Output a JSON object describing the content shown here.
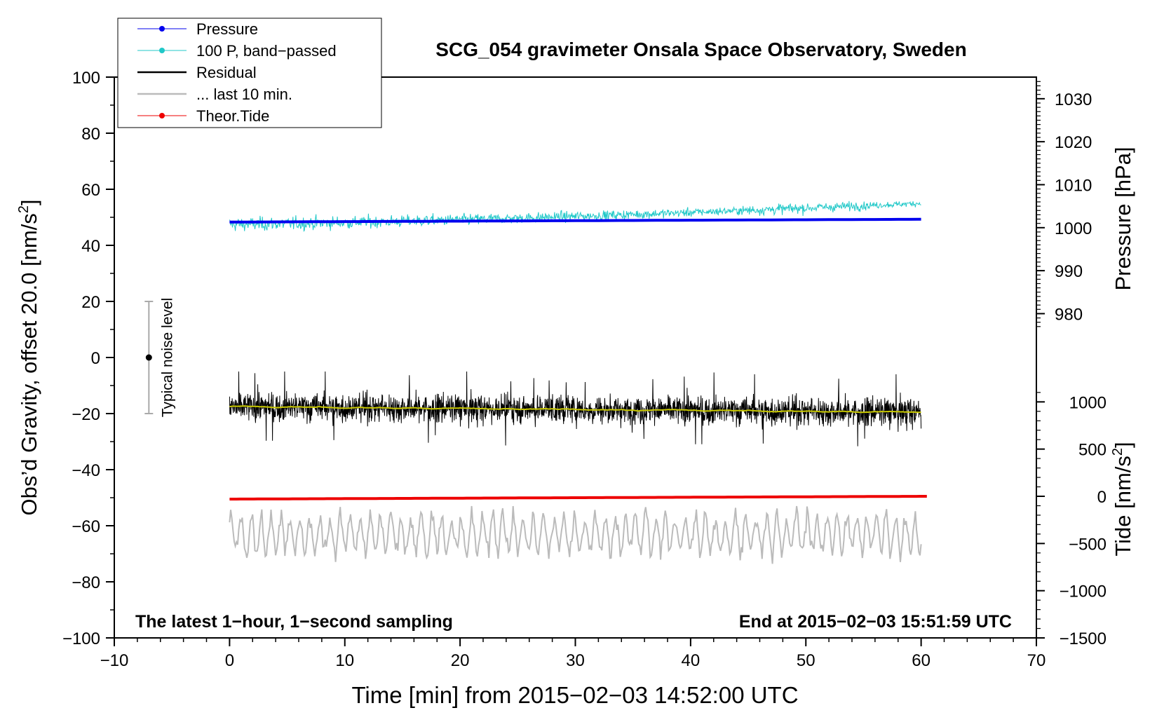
{
  "chart_data": {
    "type": "line",
    "title": "SCG_054 gravimeter Onsala Space Observatory, Sweden",
    "xlabel": "Time [min] from 2015−02−03 14:52:00 UTC",
    "ylabel_left": "Obs’d Gravity, offset 20.0 [nm/s",
    "ylabel_left_sup": "2",
    "ylabel_left_tail": "]",
    "ylabel_pressure": "Pressure [hPa]",
    "ylabel_tide": "Tide [nm/s",
    "ylabel_tide_sup": "2",
    "ylabel_tide_tail": "]",
    "xlim": [
      -10,
      70
    ],
    "ylim": [
      -100,
      100
    ],
    "x_ticks": [
      -10,
      0,
      10,
      20,
      30,
      40,
      50,
      60,
      70
    ],
    "x_tick_labels": [
      "−10",
      "0",
      "10",
      "20",
      "30",
      "40",
      "50",
      "60",
      "70"
    ],
    "y_ticks": [
      -100,
      -80,
      -60,
      -40,
      -20,
      0,
      20,
      40,
      60,
      80,
      100
    ],
    "y_tick_labels": [
      "−100",
      "−80",
      "−60",
      "−40",
      "−20",
      "0",
      "20",
      "40",
      "60",
      "80",
      "100"
    ],
    "pressure_axis": {
      "ticks": [
        980,
        990,
        1000,
        1010,
        1020,
        1030
      ],
      "tick_labels": [
        "980",
        "990",
        "1000",
        "1010",
        "1020",
        "1030"
      ],
      "map_left_value_at_1000": 46.3,
      "left_units_per_hpa": 1.533
    },
    "tide_axis": {
      "ticks": [
        -1500,
        -1000,
        -500,
        0,
        500,
        1000
      ],
      "tick_labels": [
        "−1500",
        "−1000",
        "−500",
        "0",
        "500",
        "1000"
      ],
      "map_left_value_at_0": -49.5,
      "left_units_per_nms2": 0.03367
    },
    "legend": {
      "position": "top-left",
      "entries": [
        {
          "label": "Pressure",
          "color": "#0000ee",
          "marker": true
        },
        {
          "label": "100 P, band−passed",
          "color": "#20c8c8",
          "marker": true
        },
        {
          "label": "Residual",
          "color": "#000000",
          "marker": false
        },
        {
          "label": "... last 10 min.",
          "color": "#bbbbbb",
          "marker": false
        },
        {
          "label": "Theor.Tide",
          "color": "#ee0000",
          "marker": true
        }
      ]
    },
    "series": [
      {
        "name": "Pressure",
        "color": "#0000ee",
        "x_range": [
          0,
          60
        ],
        "left_values_start_end": [
          48.3,
          49.3
        ],
        "hpa_start_end": [
          1001.3,
          1001.9
        ]
      },
      {
        "name": "100 P, band−passed",
        "color": "#20c8c8",
        "x_range": [
          0,
          60
        ],
        "left_values_start_end": [
          47.5,
          55.0
        ],
        "noise_amplitude_start_end": [
          2.5,
          1.0
        ]
      },
      {
        "name": "Residual",
        "color": "#000000",
        "x_range": [
          0,
          60
        ],
        "mean_start_end": [
          -17.5,
          -19.5
        ],
        "typical_range": [
          -27,
          -8
        ],
        "extremes": [
          -33,
          -5
        ]
      },
      {
        "name": "Residual smoothed",
        "color": "#c8c800",
        "x_range": [
          0,
          60
        ],
        "mean_start_end": [
          -17.5,
          -19.5
        ]
      },
      {
        "name": "... last 10 min.",
        "color": "#bbbbbb",
        "x_range": [
          0,
          60
        ],
        "mean": -63,
        "typical_range": [
          -75,
          -51
        ]
      },
      {
        "name": "Theor.Tide",
        "color": "#ee0000",
        "x_range": [
          0,
          60.5
        ],
        "left_values_start_end": [
          -50.5,
          -49.5
        ],
        "tide_start_end": [
          -30,
          0
        ]
      }
    ],
    "noise_bar": {
      "label": "Typical noise level",
      "x": -7,
      "center": 0,
      "range": [
        -20,
        20
      ]
    },
    "annotation_left": "The latest 1−hour, 1−second sampling",
    "annotation_right": "End at 2015−02−03 15:51:59 UTC"
  }
}
